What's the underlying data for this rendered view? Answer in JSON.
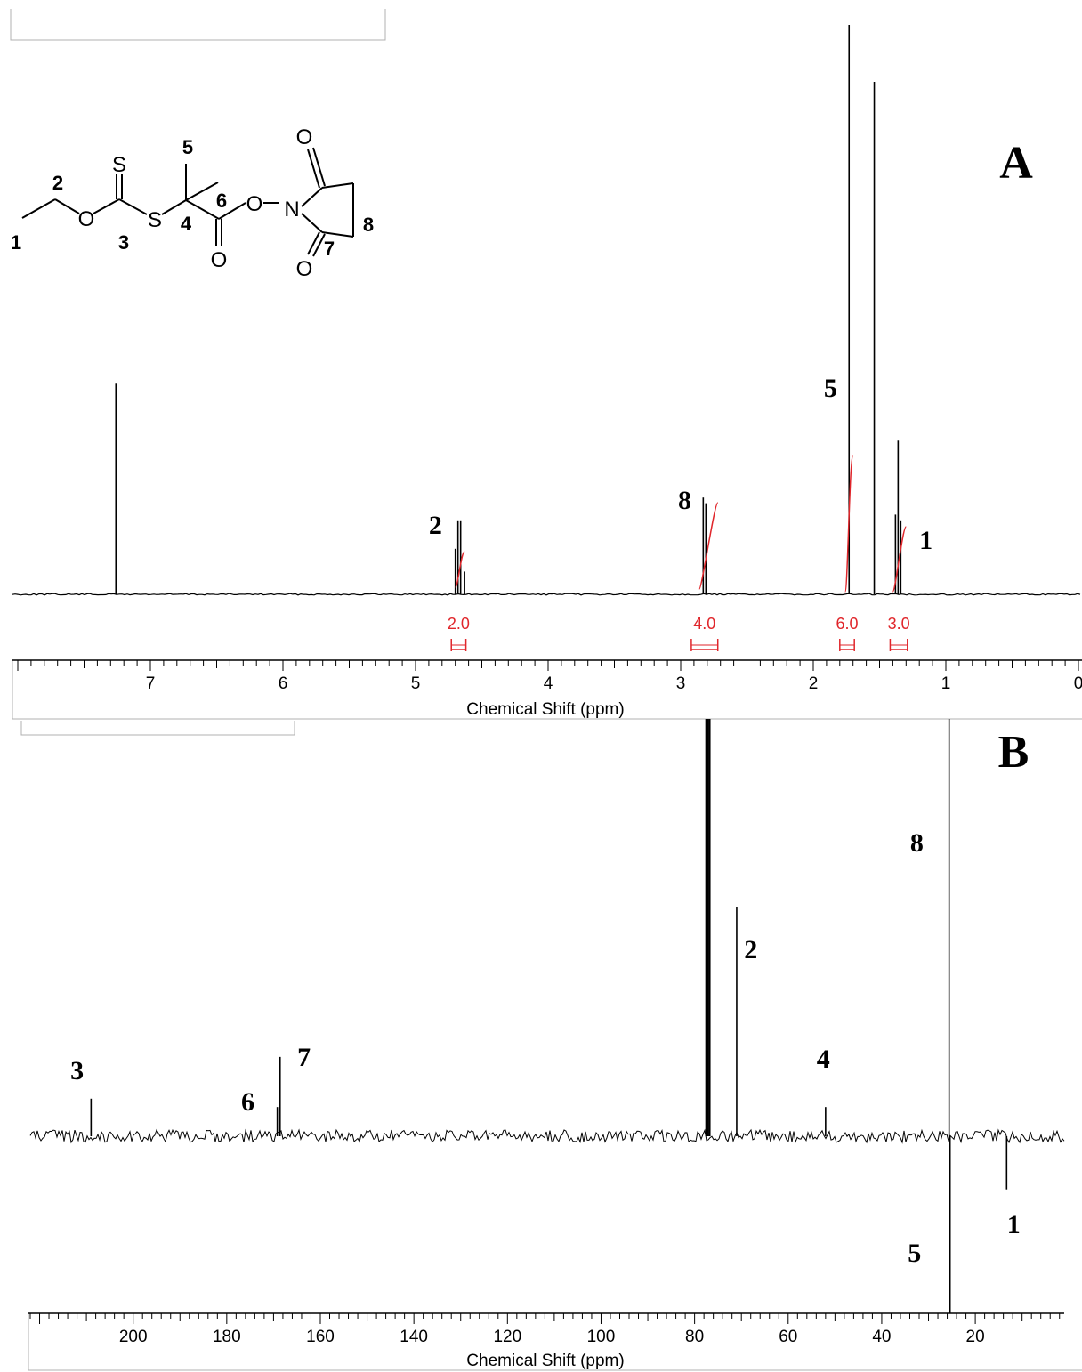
{
  "chart_data": [
    {
      "panel": "A",
      "type": "line",
      "xlabel": "Chemical Shift (ppm)",
      "xlim": [
        8.0,
        0.0
      ],
      "x_reversed": true,
      "x_ticks": [
        "7",
        "6",
        "5",
        "4",
        "3",
        "2",
        "1",
        "0"
      ],
      "peaks": [
        {
          "x": 7.26,
          "height": 0.37,
          "label": ""
        },
        {
          "x": 4.7,
          "height": 0.08,
          "label": "2"
        },
        {
          "x": 4.68,
          "height": 0.13,
          "label": ""
        },
        {
          "x": 4.66,
          "height": 0.13,
          "label": ""
        },
        {
          "x": 4.63,
          "height": 0.04,
          "label": ""
        },
        {
          "x": 2.83,
          "height": 0.17,
          "label": "8"
        },
        {
          "x": 2.81,
          "height": 0.16,
          "label": ""
        },
        {
          "x": 1.73,
          "height": 1.0,
          "label": "5"
        },
        {
          "x": 1.54,
          "height": 0.9,
          "label": ""
        },
        {
          "x": 1.38,
          "height": 0.14,
          "label": "1"
        },
        {
          "x": 1.36,
          "height": 0.27,
          "label": ""
        },
        {
          "x": 1.34,
          "height": 0.13,
          "label": ""
        }
      ],
      "peak_labels": [
        {
          "x": 4.85,
          "text": "2"
        },
        {
          "x": 2.97,
          "text": "8"
        },
        {
          "x": 1.87,
          "text": "5"
        },
        {
          "x": 1.15,
          "text": "1"
        }
      ],
      "integrals": [
        {
          "from": 4.73,
          "to": 4.62,
          "value": "2.0"
        },
        {
          "from": 2.92,
          "to": 2.72,
          "value": "4.0"
        },
        {
          "from": 1.8,
          "to": 1.69,
          "value": "6.0"
        },
        {
          "from": 1.42,
          "to": 1.29,
          "value": "3.0"
        }
      ],
      "panel_label": "A"
    },
    {
      "panel": "B",
      "type": "line",
      "xlabel": "Chemical Shift (ppm)",
      "xlim": [
        222,
        1
      ],
      "x_reversed": true,
      "x_ticks": [
        "200",
        "180",
        "160",
        "140",
        "120",
        "100",
        "80",
        "60",
        "40",
        "20"
      ],
      "peaks": [
        {
          "x": 209.0,
          "height": 0.09,
          "label": "3"
        },
        {
          "x": 169.2,
          "height": 0.07,
          "label": "6"
        },
        {
          "x": 168.6,
          "height": 0.19,
          "label": "7"
        },
        {
          "x": 77.5,
          "height": 1.0,
          "label": ""
        },
        {
          "x": 77.2,
          "height": 1.0,
          "label": ""
        },
        {
          "x": 76.8,
          "height": 1.0,
          "label": ""
        },
        {
          "x": 71.0,
          "height": 0.55,
          "label": "2"
        },
        {
          "x": 52.0,
          "height": 0.07,
          "label": "4"
        },
        {
          "x": 25.6,
          "height": 1.0,
          "label": "8"
        },
        {
          "x": 25.4,
          "height": -1.0,
          "label": "5"
        },
        {
          "x": 13.3,
          "height": -0.3,
          "label": "1"
        }
      ],
      "peak_labels": [
        {
          "x": 212.0,
          "text": "3",
          "dir": "up"
        },
        {
          "x": 175.5,
          "text": "6",
          "dir": "up"
        },
        {
          "x": 163.5,
          "text": "7",
          "dir": "up"
        },
        {
          "x": 68.0,
          "text": "2",
          "dir": "up"
        },
        {
          "x": 52.5,
          "text": "4",
          "dir": "up"
        },
        {
          "x": 32.5,
          "text": "8",
          "dir": "up"
        },
        {
          "x": 33.0,
          "text": "5",
          "dir": "down"
        },
        {
          "x": 11.8,
          "text": "1",
          "dir": "down"
        }
      ],
      "panel_label": "B"
    }
  ],
  "structure": {
    "atom_labels": {
      "S": "S",
      "O": "O",
      "N": "N"
    },
    "numbers": {
      "n1": "1",
      "n2": "2",
      "n3": "3",
      "n4": "4",
      "n5": "5",
      "n6": "6",
      "n7": "7",
      "n8": "8"
    }
  },
  "colors": {
    "spectrum": "#000000",
    "integral": "#e0262b",
    "axis": "#000000"
  }
}
